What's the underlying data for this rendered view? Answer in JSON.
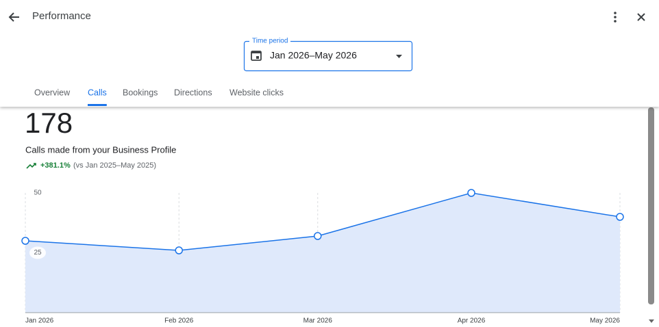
{
  "header": {
    "title": "Performance"
  },
  "time_period": {
    "label": "Time period",
    "value": "Jan 2026–May 2026"
  },
  "tabs": [
    "Overview",
    "Calls",
    "Bookings",
    "Directions",
    "Website clicks"
  ],
  "active_tab": 1,
  "metric": {
    "value": 178,
    "description": "Calls made from your Business Profile",
    "change": "+381.1%",
    "comparison": "(vs Jan 2025–May 2025)"
  },
  "chart_data": {
    "type": "area",
    "x": [
      "Jan 2026",
      "Feb 2026",
      "Mar 2026",
      "Apr 2026",
      "May 2026"
    ],
    "values": [
      30,
      26,
      32,
      50,
      40
    ],
    "ylim": [
      0,
      50
    ],
    "yticks": [
      25,
      50
    ],
    "color": "#1a73e8",
    "fill_color": "#dfe9fb",
    "grid": true
  }
}
